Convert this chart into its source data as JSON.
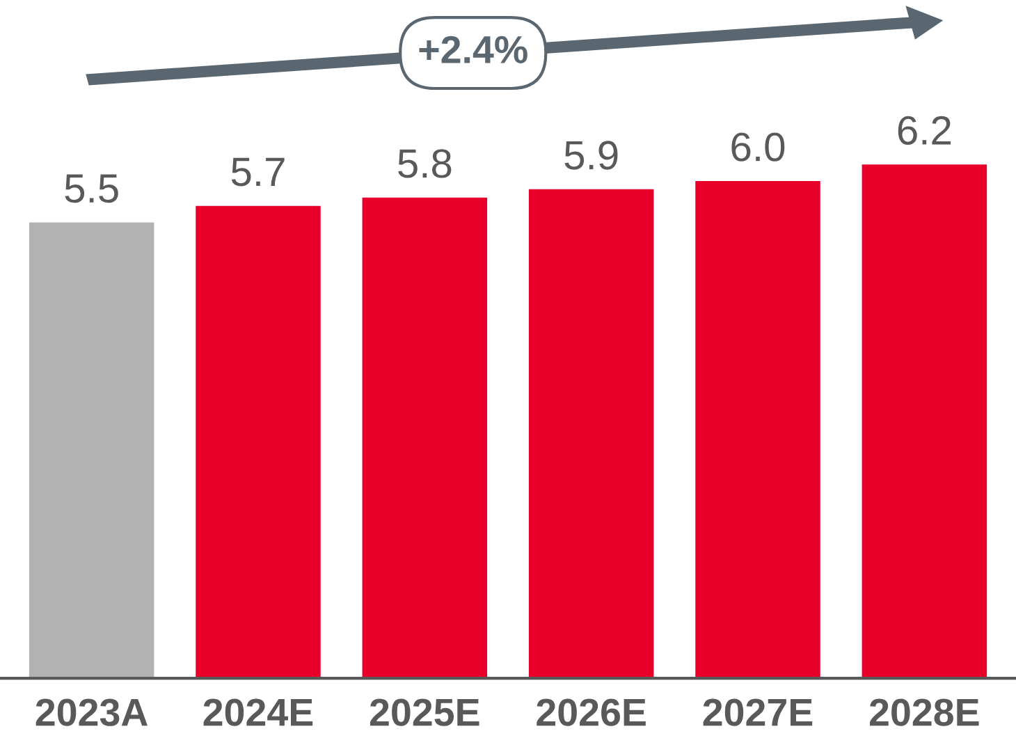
{
  "chart_data": {
    "type": "bar",
    "categories": [
      "2023A",
      "2024E",
      "2025E",
      "2026E",
      "2027E",
      "2028E"
    ],
    "values": [
      5.5,
      5.7,
      5.8,
      5.9,
      6.0,
      6.2
    ],
    "colors": [
      "#b2b2b2",
      "#e8002a",
      "#e8002a",
      "#e8002a",
      "#e8002a",
      "#e8002a"
    ],
    "value_labels": [
      "5.5",
      "5.7",
      "5.8",
      "5.9",
      "6.0",
      "6.2"
    ],
    "annotations": [
      "+2.4%"
    ],
    "grid": false,
    "legend": false
  }
}
